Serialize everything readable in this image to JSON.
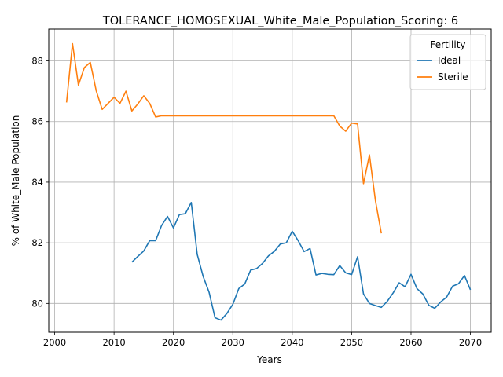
{
  "chart_data": {
    "type": "line",
    "title": "TOLERANCE_HOMOSEXUAL_White_Male_Population_Scoring: 6",
    "xlabel": "Years",
    "ylabel": "% of White_Male Population",
    "xlim": [
      1999,
      2073.5
    ],
    "ylim": [
      79.05,
      89.05
    ],
    "xticks": [
      2000,
      2010,
      2020,
      2030,
      2040,
      2050,
      2060,
      2070
    ],
    "yticks": [
      80,
      82,
      84,
      86,
      88
    ],
    "grid": true,
    "legend": {
      "title": "Fertility",
      "placement": "top-right"
    },
    "series": [
      {
        "name": "Ideal",
        "color": "#1f77b4",
        "x": [
          2013,
          2014,
          2015,
          2016,
          2017,
          2018,
          2019,
          2020,
          2021,
          2022,
          2023,
          2024,
          2025,
          2026,
          2027,
          2028,
          2029,
          2030,
          2031,
          2032,
          2033,
          2034,
          2035,
          2036,
          2037,
          2038,
          2039,
          2040,
          2041,
          2042,
          2043,
          2044,
          2045,
          2046,
          2047,
          2048,
          2049,
          2050,
          2051,
          2052,
          2053,
          2054,
          2055,
          2056,
          2057,
          2058,
          2059,
          2060,
          2061,
          2062,
          2063,
          2064,
          2065,
          2066,
          2067,
          2068,
          2069,
          2070
        ],
        "y": [
          81.36,
          81.55,
          81.73,
          82.07,
          82.07,
          82.57,
          82.87,
          82.49,
          82.93,
          82.96,
          83.33,
          81.62,
          80.89,
          80.37,
          79.53,
          79.45,
          79.67,
          79.97,
          80.49,
          80.64,
          81.1,
          81.15,
          81.32,
          81.57,
          81.72,
          81.96,
          82.0,
          82.38,
          82.07,
          81.71,
          81.81,
          80.94,
          80.99,
          80.96,
          80.95,
          81.25,
          81.01,
          80.95,
          81.54,
          80.31,
          80.0,
          79.93,
          79.87,
          80.07,
          80.35,
          80.68,
          80.55,
          80.96,
          80.49,
          80.31,
          79.94,
          79.84,
          80.05,
          80.21,
          80.57,
          80.65,
          80.92,
          80.45
        ]
      },
      {
        "name": "Sterile",
        "color": "#ff7f0e",
        "x": [
          2002,
          2003,
          2004,
          2005,
          2006,
          2007,
          2008,
          2009,
          2010,
          2011,
          2012,
          2013,
          2014,
          2015,
          2016,
          2017,
          2018,
          2019,
          2020,
          2021,
          2022,
          2023,
          2024,
          2025,
          2026,
          2027,
          2028,
          2029,
          2030,
          2031,
          2032,
          2033,
          2034,
          2035,
          2036,
          2037,
          2038,
          2039,
          2040,
          2041,
          2042,
          2043,
          2044,
          2045,
          2046,
          2047,
          2048,
          2049,
          2050,
          2051,
          2052,
          2053,
          2054,
          2055
        ],
        "y": [
          86.63,
          88.57,
          87.2,
          87.78,
          87.95,
          87.01,
          86.4,
          86.6,
          86.8,
          86.6,
          87.0,
          86.35,
          86.58,
          86.85,
          86.6,
          86.15,
          86.19,
          86.19,
          86.19,
          86.19,
          86.19,
          86.19,
          86.19,
          86.19,
          86.19,
          86.19,
          86.19,
          86.19,
          86.19,
          86.19,
          86.19,
          86.19,
          86.19,
          86.19,
          86.19,
          86.19,
          86.19,
          86.19,
          86.19,
          86.19,
          86.19,
          86.19,
          86.19,
          86.19,
          86.19,
          86.19,
          85.85,
          85.68,
          85.95,
          85.92,
          83.95,
          84.9,
          83.4,
          82.31
        ]
      }
    ]
  }
}
